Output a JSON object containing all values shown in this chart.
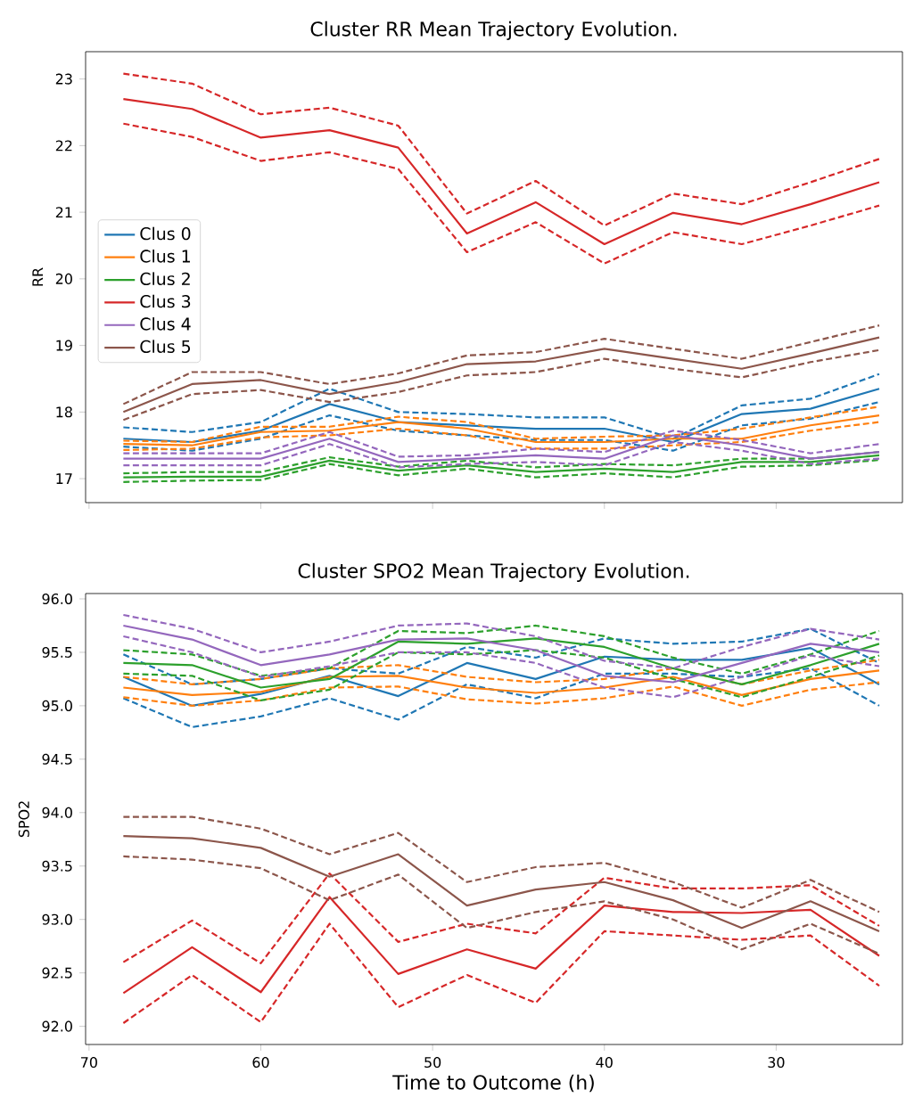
{
  "chart_data": [
    {
      "type": "line",
      "title": "Cluster RR Mean Trajectory Evolution.",
      "ylabel": "RR",
      "x": [
        68,
        64,
        60,
        56,
        52,
        48,
        44,
        40,
        36,
        32,
        28,
        24
      ],
      "xlim": [
        70.2,
        22.65
      ],
      "ylim": [
        16.64,
        23.41
      ],
      "xticks": [
        70,
        60,
        50,
        40,
        30
      ],
      "yticks": [
        17,
        18,
        19,
        20,
        21,
        22,
        23
      ],
      "tick_labels": "y",
      "legend": "left",
      "line_style": "solid",
      "series": [
        {
          "name": "Clus 0",
          "color": "#1f77b4",
          "values": [
            17.6,
            17.55,
            17.72,
            18.12,
            17.85,
            17.8,
            17.75,
            17.75,
            17.55,
            17.97,
            18.05,
            18.35
          ]
        },
        {
          "color": "#1f77b4",
          "line_style": "dashed",
          "values": [
            17.77,
            17.7,
            17.85,
            18.35,
            18.0,
            17.97,
            17.92,
            17.92,
            17.6,
            18.1,
            18.2,
            18.57
          ]
        },
        {
          "color": "#1f77b4",
          "line_style": "dashed",
          "values": [
            17.48,
            17.42,
            17.6,
            17.95,
            17.72,
            17.65,
            17.58,
            17.58,
            17.42,
            17.8,
            17.9,
            18.15
          ]
        },
        {
          "name": "Clus 1",
          "color": "#ff7f0e",
          "values": [
            17.52,
            17.5,
            17.7,
            17.72,
            17.85,
            17.75,
            17.55,
            17.55,
            17.6,
            17.6,
            17.8,
            17.95
          ]
        },
        {
          "color": "#ff7f0e",
          "line_style": "dashed",
          "values": [
            17.57,
            17.55,
            17.78,
            17.78,
            17.93,
            17.85,
            17.6,
            17.63,
            17.65,
            17.75,
            17.92,
            18.08
          ]
        },
        {
          "color": "#ff7f0e",
          "line_style": "dashed",
          "values": [
            17.43,
            17.45,
            17.62,
            17.65,
            17.75,
            17.65,
            17.45,
            17.45,
            17.5,
            17.55,
            17.72,
            17.85
          ]
        },
        {
          "name": "Clus 2",
          "color": "#2ca02c",
          "values": [
            17.02,
            17.03,
            17.03,
            17.27,
            17.12,
            17.2,
            17.1,
            17.15,
            17.1,
            17.25,
            17.25,
            17.35
          ]
        },
        {
          "color": "#2ca02c",
          "line_style": "dashed",
          "values": [
            17.08,
            17.1,
            17.1,
            17.32,
            17.18,
            17.27,
            17.17,
            17.22,
            17.2,
            17.3,
            17.3,
            17.4
          ]
        },
        {
          "color": "#2ca02c",
          "line_style": "dashed",
          "values": [
            16.95,
            16.97,
            16.98,
            17.22,
            17.05,
            17.15,
            17.02,
            17.08,
            17.02,
            17.18,
            17.2,
            17.28
          ]
        },
        {
          "name": "Clus 3",
          "color": "#d62728",
          "values": [
            22.7,
            22.55,
            22.12,
            22.23,
            21.97,
            20.68,
            21.15,
            20.52,
            20.99,
            20.82,
            21.12,
            21.45
          ]
        },
        {
          "color": "#d62728",
          "line_style": "dashed",
          "values": [
            23.08,
            22.93,
            22.47,
            22.57,
            22.3,
            20.98,
            21.47,
            20.8,
            21.28,
            21.12,
            21.45,
            21.8
          ]
        },
        {
          "color": "#d62728",
          "line_style": "dashed",
          "values": [
            22.33,
            22.13,
            21.77,
            21.9,
            21.65,
            20.4,
            20.85,
            20.23,
            20.7,
            20.52,
            20.8,
            21.1
          ]
        },
        {
          "name": "Clus 4",
          "color": "#9467bd",
          "values": [
            17.3,
            17.3,
            17.3,
            17.6,
            17.25,
            17.3,
            17.35,
            17.3,
            17.65,
            17.5,
            17.3,
            17.4
          ]
        },
        {
          "color": "#9467bd",
          "line_style": "dashed",
          "values": [
            17.38,
            17.38,
            17.38,
            17.7,
            17.33,
            17.35,
            17.45,
            17.4,
            17.72,
            17.58,
            17.38,
            17.52
          ]
        },
        {
          "color": "#9467bd",
          "line_style": "dashed",
          "values": [
            17.2,
            17.2,
            17.2,
            17.52,
            17.17,
            17.22,
            17.25,
            17.2,
            17.55,
            17.42,
            17.22,
            17.3
          ]
        },
        {
          "name": "Clus 5",
          "color": "#8c564b",
          "values": [
            18.0,
            18.42,
            18.48,
            18.27,
            18.45,
            18.72,
            18.76,
            18.95,
            18.8,
            18.65,
            18.88,
            19.12
          ]
        },
        {
          "color": "#8c564b",
          "line_style": "dashed",
          "values": [
            18.12,
            18.6,
            18.6,
            18.42,
            18.58,
            18.85,
            18.9,
            19.1,
            18.95,
            18.8,
            19.05,
            19.3
          ]
        },
        {
          "color": "#8c564b",
          "line_style": "dashed",
          "values": [
            17.88,
            18.27,
            18.33,
            18.15,
            18.3,
            18.55,
            18.6,
            18.8,
            18.65,
            18.52,
            18.75,
            18.93
          ]
        }
      ]
    },
    {
      "type": "line",
      "title": "Cluster SPO2 Mean Trajectory Evolution.",
      "xlabel": "Time to Outcome (h)",
      "ylabel": "SPO2",
      "x": [
        68,
        64,
        60,
        56,
        52,
        48,
        44,
        40,
        36,
        32,
        28,
        24
      ],
      "xlim": [
        70.2,
        22.65
      ],
      "ylim": [
        91.83,
        96.05
      ],
      "xticks": [
        70,
        60,
        50,
        40,
        30
      ],
      "yticks": [
        {
          "value": 92,
          "label": "92.0"
        },
        {
          "value": 92.5,
          "label": "92.5"
        },
        {
          "value": 93,
          "label": "93.0"
        },
        {
          "value": 93.5,
          "label": "93.5"
        },
        {
          "value": 94,
          "label": "94.0"
        },
        {
          "value": 94.5,
          "label": "94.5"
        },
        {
          "value": 95,
          "label": "95.0"
        },
        {
          "value": 95.5,
          "label": "95.5"
        },
        {
          "value": 96,
          "label": "96.0"
        }
      ],
      "line_style": "solid",
      "series": [
        {
          "color": "#1f77b4",
          "values": [
            95.27,
            95.0,
            95.11,
            95.28,
            95.09,
            95.4,
            95.25,
            95.46,
            95.43,
            95.43,
            95.54,
            95.2
          ]
        },
        {
          "color": "#1f77b4",
          "line_style": "dashed",
          "values": [
            95.48,
            95.2,
            95.25,
            95.35,
            95.3,
            95.55,
            95.45,
            95.63,
            95.58,
            95.6,
            95.72,
            95.4
          ]
        },
        {
          "color": "#1f77b4",
          "line_style": "dashed",
          "values": [
            95.07,
            94.8,
            94.9,
            95.07,
            94.87,
            95.2,
            95.07,
            95.3,
            95.3,
            95.27,
            95.35,
            95.0
          ]
        },
        {
          "color": "#ff7f0e",
          "values": [
            95.17,
            95.1,
            95.13,
            95.27,
            95.28,
            95.17,
            95.12,
            95.17,
            95.27,
            95.1,
            95.25,
            95.33
          ]
        },
        {
          "color": "#ff7f0e",
          "line_style": "dashed",
          "values": [
            95.27,
            95.2,
            95.25,
            95.35,
            95.38,
            95.27,
            95.22,
            95.25,
            95.35,
            95.2,
            95.33,
            95.43
          ]
        },
        {
          "color": "#ff7f0e",
          "line_style": "dashed",
          "values": [
            95.08,
            95.0,
            95.05,
            95.17,
            95.18,
            95.06,
            95.02,
            95.07,
            95.18,
            95.0,
            95.15,
            95.22
          ]
        },
        {
          "color": "#2ca02c",
          "values": [
            95.4,
            95.38,
            95.17,
            95.25,
            95.6,
            95.58,
            95.63,
            95.55,
            95.35,
            95.2,
            95.38,
            95.58
          ]
        },
        {
          "color": "#2ca02c",
          "line_style": "dashed",
          "values": [
            95.52,
            95.48,
            95.28,
            95.35,
            95.7,
            95.68,
            95.75,
            95.65,
            95.45,
            95.3,
            95.48,
            95.7
          ]
        },
        {
          "color": "#2ca02c",
          "line_style": "dashed",
          "values": [
            95.3,
            95.28,
            95.05,
            95.15,
            95.5,
            95.48,
            95.52,
            95.45,
            95.25,
            95.08,
            95.27,
            95.47
          ]
        },
        {
          "color": "#d62728",
          "values": [
            92.31,
            92.74,
            92.32,
            93.21,
            92.49,
            92.72,
            92.54,
            93.13,
            93.07,
            93.06,
            93.09,
            92.66
          ]
        },
        {
          "color": "#d62728",
          "line_style": "dashed",
          "values": [
            92.6,
            92.99,
            92.59,
            93.43,
            92.79,
            92.96,
            92.87,
            93.39,
            93.29,
            93.29,
            93.32,
            92.94
          ]
        },
        {
          "color": "#d62728",
          "line_style": "dashed",
          "values": [
            92.03,
            92.48,
            92.04,
            92.96,
            92.18,
            92.48,
            92.22,
            92.89,
            92.85,
            92.81,
            92.85,
            92.38
          ]
        },
        {
          "color": "#9467bd",
          "values": [
            95.75,
            95.62,
            95.38,
            95.48,
            95.62,
            95.63,
            95.52,
            95.28,
            95.22,
            95.4,
            95.58,
            95.5
          ]
        },
        {
          "color": "#9467bd",
          "line_style": "dashed",
          "values": [
            95.85,
            95.72,
            95.5,
            95.6,
            95.75,
            95.77,
            95.65,
            95.42,
            95.35,
            95.55,
            95.72,
            95.62
          ]
        },
        {
          "color": "#9467bd",
          "line_style": "dashed",
          "values": [
            95.65,
            95.5,
            95.27,
            95.37,
            95.5,
            95.5,
            95.4,
            95.17,
            95.08,
            95.27,
            95.47,
            95.37
          ]
        },
        {
          "color": "#8c564b",
          "values": [
            93.78,
            93.76,
            93.67,
            93.4,
            93.61,
            93.13,
            93.28,
            93.35,
            93.18,
            92.92,
            93.17,
            92.89
          ]
        },
        {
          "color": "#8c564b",
          "line_style": "dashed",
          "values": [
            93.96,
            93.96,
            93.85,
            93.61,
            93.81,
            93.35,
            93.49,
            93.53,
            93.35,
            93.11,
            93.37,
            93.07
          ]
        },
        {
          "color": "#8c564b",
          "line_style": "dashed",
          "values": [
            93.59,
            93.56,
            93.48,
            93.18,
            93.42,
            92.92,
            93.07,
            93.17,
            93.0,
            92.72,
            92.96,
            92.68
          ]
        }
      ]
    }
  ]
}
